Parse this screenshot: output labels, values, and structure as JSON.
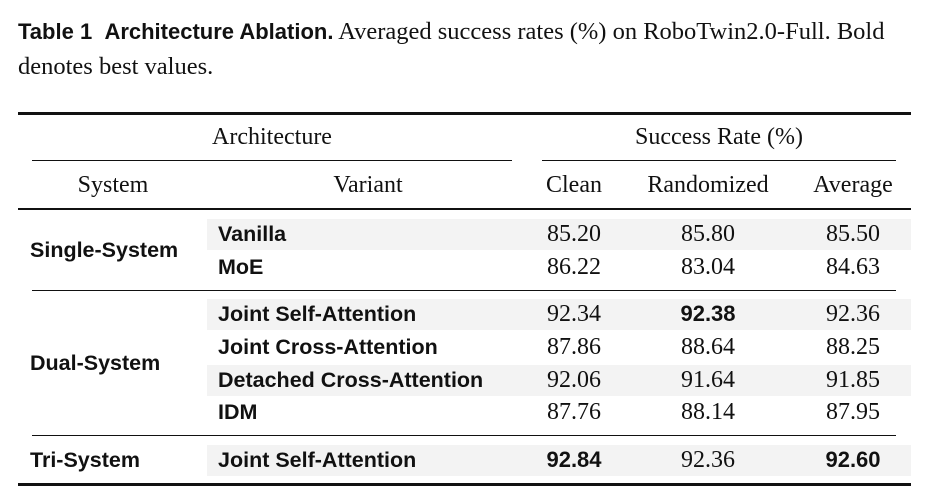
{
  "caption": {
    "label": "Table 1",
    "title": "Architecture Ablation.",
    "text": "Averaged success rates (%) on RoboTwin2.0-Full. Bold denotes best values."
  },
  "header": {
    "group_architecture": "Architecture",
    "group_success": "Success Rate (%)",
    "system": "System",
    "variant": "Variant",
    "clean": "Clean",
    "randomized": "Randomized",
    "average": "Average"
  },
  "groups": [
    {
      "system": "Single-System",
      "rows": [
        {
          "variant": "Vanilla",
          "clean": "85.20",
          "randomized": "85.80",
          "average": "85.50",
          "best": []
        },
        {
          "variant": "MoE",
          "clean": "86.22",
          "randomized": "83.04",
          "average": "84.63",
          "best": []
        }
      ]
    },
    {
      "system": "Dual-System",
      "rows": [
        {
          "variant": "Joint Self-Attention",
          "clean": "92.34",
          "randomized": "92.38",
          "average": "92.36",
          "best": [
            "randomized"
          ]
        },
        {
          "variant": "Joint Cross-Attention",
          "clean": "87.86",
          "randomized": "88.64",
          "average": "88.25",
          "best": []
        },
        {
          "variant": "Detached Cross-Attention",
          "clean": "92.06",
          "randomized": "91.64",
          "average": "91.85",
          "best": []
        },
        {
          "variant": "IDM",
          "clean": "87.76",
          "randomized": "88.14",
          "average": "87.95",
          "best": []
        }
      ]
    },
    {
      "system": "Tri-System",
      "rows": [
        {
          "variant": "Joint Self-Attention",
          "clean": "92.84",
          "randomized": "92.36",
          "average": "92.60",
          "best": [
            "clean",
            "average"
          ]
        }
      ]
    }
  ]
}
